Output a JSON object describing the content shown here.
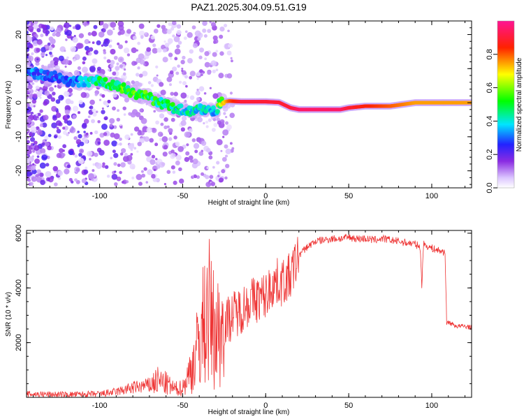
{
  "title": "PAZ1.2025.304.09.51.G19",
  "chart_data": [
    {
      "type": "heatmap",
      "xlabel": "Height of straight line (km)",
      "ylabel": "Frequency (Hz)",
      "xlim": [
        -144,
        124
      ],
      "ylim": [
        -25,
        24
      ],
      "xticks": [
        -100,
        -50,
        0,
        50,
        100
      ],
      "yticks": [
        -20,
        -10,
        0,
        10,
        20
      ],
      "colorbar": {
        "label": "Normalized spectral amplitude",
        "range": [
          0,
          1
        ],
        "ticks": [
          "0.0",
          "0.2",
          "0.4",
          "0.6",
          "0.8"
        ],
        "tick_values": [
          0.0,
          0.2,
          0.4,
          0.6,
          0.8
        ],
        "colormap": [
          "#ffffff",
          "#dcc6ff",
          "#8a2be2",
          "#2222ff",
          "#00e5ff",
          "#00ff00",
          "#ffff00",
          "#ff2200",
          "#ff1493"
        ]
      },
      "ridge": {
        "x": [
          -144,
          -130,
          -115,
          -100,
          -90,
          -80,
          -70,
          -62,
          -55,
          -48,
          -40,
          -35,
          -30,
          -28,
          -22,
          -15,
          -8,
          0,
          8,
          15,
          20,
          30,
          45,
          50,
          60,
          75,
          90,
          100,
          110,
          124
        ],
        "y": [
          9,
          8,
          6,
          6.5,
          5,
          3,
          1.5,
          -0.5,
          -1.5,
          -2.5,
          -2,
          -2,
          -3,
          0,
          0.5,
          0.3,
          0.3,
          0.3,
          0.1,
          -1.5,
          -2,
          -2,
          -2,
          -1.5,
          -1,
          -1,
          0,
          0,
          0,
          0
        ],
        "amplitude": [
          0.35,
          0.3,
          0.35,
          0.5,
          0.55,
          0.6,
          0.55,
          0.5,
          0.5,
          0.45,
          0.45,
          0.4,
          0.4,
          0.6,
          0.8,
          0.9,
          0.9,
          0.9,
          0.9,
          0.9,
          0.95,
          0.95,
          0.95,
          0.9,
          0.85,
          0.8,
          0.75,
          0.75,
          0.75,
          0.75
        ]
      }
    },
    {
      "type": "line",
      "xlabel": "Height of straight line (km)",
      "ylabel": "SNR (10 * v/v)",
      "xlim": [
        -144,
        124
      ],
      "ylim": [
        0,
        6100
      ],
      "xticks": [
        -100,
        -50,
        0,
        50,
        100
      ],
      "yticks": [
        2000,
        4000,
        6000
      ],
      "color": "#ee3333",
      "series": [
        {
          "name": "SNR",
          "x": [
            -144,
            -120,
            -100,
            -90,
            -80,
            -70,
            -65,
            -60,
            -55,
            -50,
            -45,
            -40,
            -37,
            -34,
            -32,
            -30,
            -28,
            -25,
            -20,
            -15,
            -10,
            -5,
            0,
            5,
            10,
            15,
            18,
            20,
            25,
            30,
            35,
            40,
            45,
            50,
            55,
            60,
            65,
            70,
            75,
            80,
            85,
            90,
            93,
            94,
            95,
            100,
            105,
            108,
            109,
            110,
            115,
            120,
            124
          ],
          "y": [
            120,
            100,
            120,
            200,
            350,
            450,
            600,
            500,
            300,
            350,
            1000,
            2000,
            2800,
            3100,
            2600,
            2400,
            2400,
            2700,
            3000,
            3200,
            3500,
            3600,
            3700,
            4200,
            4200,
            4400,
            4900,
            5200,
            5500,
            5700,
            5750,
            5800,
            5800,
            5850,
            5800,
            5800,
            5750,
            5800,
            5750,
            5700,
            5650,
            5600,
            5500,
            4100,
            5600,
            5450,
            5350,
            5300,
            2700,
            2750,
            2600,
            2600,
            2550
          ]
        }
      ]
    }
  ]
}
